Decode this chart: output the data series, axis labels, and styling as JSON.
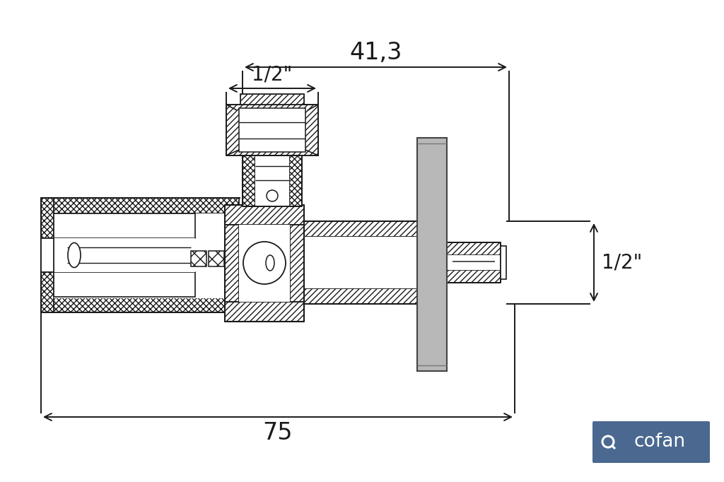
{
  "bg_color": "#ffffff",
  "line_color": "#1a1a1a",
  "dim_color": "#1a1a1a",
  "handle_fill": "#b8b8b8",
  "handle_edge": "#444444",
  "cofan_bg": "#4a6890",
  "cofan_text": "#ffffff",
  "dim_41": "41,3",
  "dim_75": "75",
  "dim_half_top": "1/2\"",
  "dim_half_right": "1/2\"",
  "font_size_dim": 24,
  "font_size_label": 20
}
